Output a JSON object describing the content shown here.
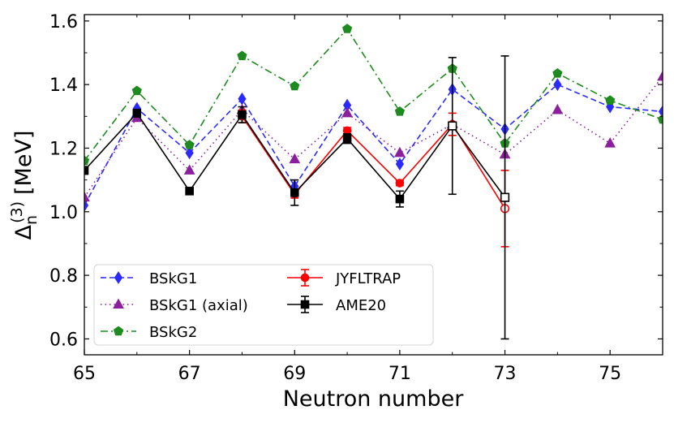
{
  "chart_data": {
    "type": "line",
    "title": "",
    "xlabel": "Neutron number",
    "ylabel": "Δ",
    "ylabel_sub": "n",
    "ylabel_sup": "(3)",
    "ylabel_unit": "[MeV]",
    "xlim": [
      65,
      76
    ],
    "ylim": [
      0.55,
      1.62
    ],
    "xticks": [
      65,
      67,
      69,
      71,
      73,
      75
    ],
    "xtick_labels": [
      "65",
      "67",
      "69",
      "71",
      "73",
      "75"
    ],
    "yticks": [
      0.6,
      0.8,
      1.0,
      1.2,
      1.4,
      1.6
    ],
    "ytick_labels": [
      "0.6",
      "0.8",
      "1.0",
      "1.2",
      "1.4",
      "1.6"
    ],
    "legend_position": "lower-left",
    "series": [
      {
        "name": "BSkG1",
        "color": "#2b2bff",
        "marker": "diamond",
        "linestyle": "dashed",
        "x": [
          65,
          66,
          67,
          68,
          69,
          70,
          71,
          72,
          73,
          74,
          75,
          76
        ],
        "y": [
          1.02,
          1.325,
          1.185,
          1.355,
          1.08,
          1.335,
          1.15,
          1.385,
          1.26,
          1.4,
          1.33,
          1.315
        ]
      },
      {
        "name": "BSkG1 (axial)",
        "color": "#8b1f9c",
        "marker": "triangle",
        "linestyle": "dotted",
        "x": [
          65,
          66,
          67,
          68,
          69,
          70,
          71,
          72,
          73,
          74,
          75,
          76
        ],
        "y": [
          1.045,
          1.295,
          1.13,
          1.32,
          1.165,
          1.31,
          1.185,
          1.275,
          1.18,
          1.32,
          1.215,
          1.425
        ]
      },
      {
        "name": "BSkG2",
        "color": "#1f8a1f",
        "marker": "pentagon",
        "linestyle": "dashdot",
        "x": [
          65,
          66,
          67,
          68,
          69,
          70,
          71,
          72,
          73,
          74,
          75,
          76
        ],
        "y": [
          1.16,
          1.38,
          1.21,
          1.49,
          1.395,
          1.575,
          1.315,
          1.45,
          1.215,
          1.435,
          1.35,
          1.29
        ]
      },
      {
        "name": "JYFLTRAP",
        "color": "#ff0000",
        "marker": "circle",
        "linestyle": "solid",
        "errorbars": true,
        "x": [
          68,
          69,
          70,
          71,
          72,
          73
        ],
        "y": [
          1.3,
          1.055,
          1.255,
          1.09,
          1.275,
          1.01
        ],
        "yerr": [
          0.02,
          0.012,
          0.01,
          0.008,
          0.035,
          0.12
        ],
        "open_marker_at": [
          73
        ]
      },
      {
        "name": "AME20",
        "color": "#000000",
        "marker": "square",
        "linestyle": "solid",
        "errorbars": true,
        "x": [
          65,
          66,
          67,
          68,
          69,
          70,
          71,
          72,
          73
        ],
        "y": [
          1.13,
          1.31,
          1.065,
          1.305,
          1.06,
          1.23,
          1.04,
          1.27,
          1.045
        ],
        "yerr": [
          0.012,
          0.012,
          0.01,
          0.025,
          0.04,
          0.015,
          0.025,
          0.215,
          0.445
        ],
        "open_marker_at": [
          72,
          73
        ]
      }
    ]
  }
}
